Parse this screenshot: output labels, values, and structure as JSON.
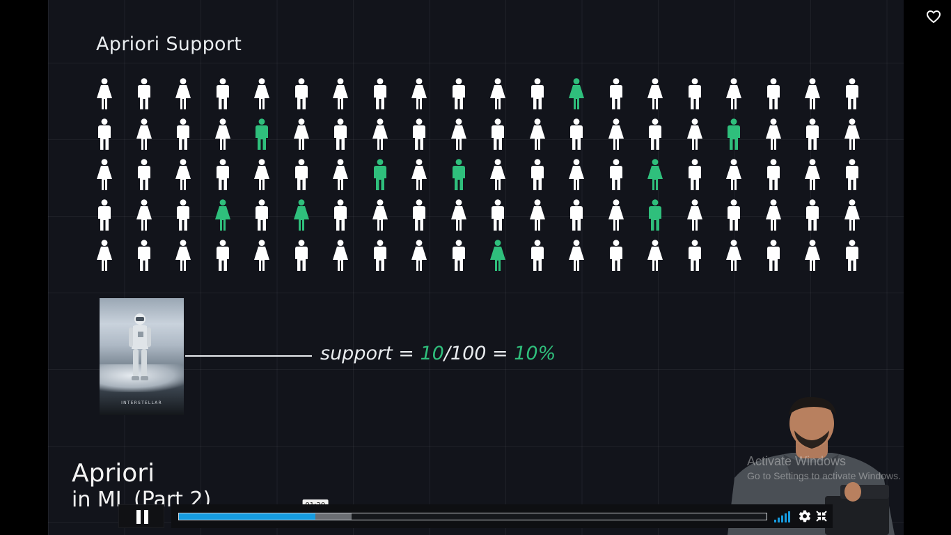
{
  "slide": {
    "title": "Apriori Support",
    "people_grid": {
      "rows": 5,
      "columns": 20,
      "highlight_color": "#2fbf7c",
      "base_color": "#ffffff",
      "highlighted": [
        [
          0,
          12
        ],
        [
          1,
          4
        ],
        [
          1,
          16
        ],
        [
          2,
          7
        ],
        [
          2,
          9
        ],
        [
          2,
          14
        ],
        [
          3,
          3
        ],
        [
          3,
          5
        ],
        [
          3,
          14
        ],
        [
          4,
          10
        ]
      ]
    },
    "poster_caption": "INTERSTELLAR",
    "formula": {
      "prefix": "support = ",
      "numerator": "10",
      "denominator": "/100 = ",
      "result": "10%"
    },
    "lesson_title_line1": "Apriori",
    "lesson_title_line2": "in ML (Part 2)"
  },
  "watermark": {
    "title": "Activate Windows",
    "subtitle": "Go to Settings to activate Windows."
  },
  "player": {
    "hover_time": "01:20",
    "played_fraction": 0.232,
    "buffered_fraction": 0.294,
    "accent_color": "#169ce0",
    "icons": {
      "favorite": "heart-outline-icon",
      "play_pause": "pause-icon",
      "volume": "volume-bars-icon",
      "settings": "gear-icon",
      "fullscreen": "exit-fullscreen-icon"
    }
  }
}
